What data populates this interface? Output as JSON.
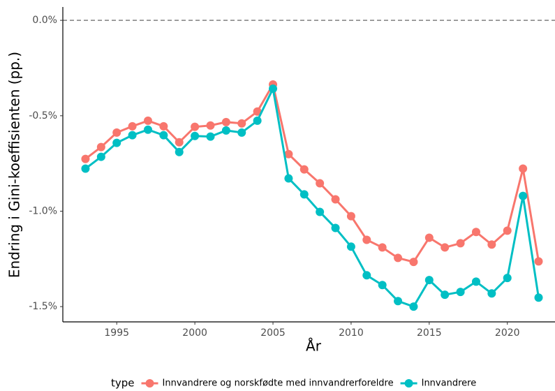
{
  "chart_data": {
    "type": "line",
    "x_label": "År",
    "y_label": "Endring i Gini-koeffisienten (pp.)",
    "legend_title": "type",
    "legend_position": "bottom",
    "x": [
      1993,
      1994,
      1995,
      1996,
      1997,
      1998,
      1999,
      2000,
      2001,
      2002,
      2003,
      2004,
      2005,
      2006,
      2007,
      2008,
      2009,
      2010,
      2011,
      2012,
      2013,
      2014,
      2015,
      2016,
      2017,
      2018,
      2019,
      2020,
      2021,
      2022
    ],
    "series": [
      {
        "name": "Innvandrere og norskfødte med innvandrerforeldre",
        "color": "#f8766d",
        "values": [
          -0.726,
          -0.664,
          -0.588,
          -0.555,
          -0.526,
          -0.555,
          -0.639,
          -0.558,
          -0.551,
          -0.533,
          -0.54,
          -0.478,
          -0.336,
          -0.701,
          -0.781,
          -0.854,
          -0.938,
          -1.026,
          -1.15,
          -1.19,
          -1.245,
          -1.266,
          -1.139,
          -1.19,
          -1.168,
          -1.109,
          -1.175,
          -1.102,
          -0.777,
          -1.263
        ]
      },
      {
        "name": "Innvandrere",
        "color": "#00bfc4",
        "values": [
          -0.777,
          -0.715,
          -0.642,
          -0.602,
          -0.573,
          -0.602,
          -0.69,
          -0.606,
          -0.609,
          -0.577,
          -0.588,
          -0.526,
          -0.358,
          -0.828,
          -0.912,
          -1.004,
          -1.088,
          -1.186,
          -1.336,
          -1.387,
          -1.471,
          -1.5,
          -1.361,
          -1.438,
          -1.423,
          -1.369,
          -1.431,
          -1.35,
          -0.92,
          -1.453
        ]
      }
    ],
    "reference_line": 0,
    "xlim": [
      1991.55,
      2023.05
    ],
    "xticks": [
      1995,
      2000,
      2005,
      2010,
      2015,
      2020
    ],
    "ylim": [
      -1.58,
      0.07
    ],
    "yticks": [
      {
        "value": -1.5,
        "label": "-1.5%"
      },
      {
        "value": -1.0,
        "label": "-1.0%"
      },
      {
        "value": -0.5,
        "label": "-0.5%"
      },
      {
        "value": 0,
        "label": "0.0%"
      }
    ],
    "grid": false
  }
}
